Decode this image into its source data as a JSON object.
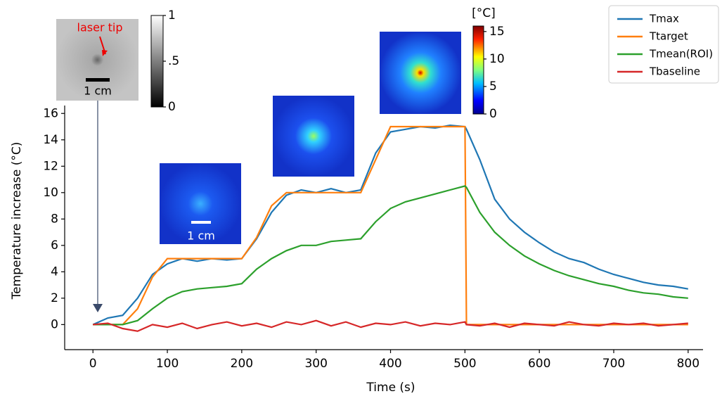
{
  "chart_data": {
    "type": "line",
    "xlabel": "Time (s)",
    "ylabel": "Temperature increase (°C)",
    "x": [
      0,
      20,
      40,
      60,
      80,
      100,
      120,
      140,
      160,
      180,
      200,
      220,
      240,
      260,
      280,
      300,
      320,
      340,
      360,
      380,
      400,
      420,
      440,
      460,
      480,
      500,
      502,
      520,
      540,
      560,
      580,
      600,
      620,
      640,
      660,
      680,
      700,
      720,
      740,
      760,
      780,
      800
    ],
    "series": [
      {
        "name": "Tmax",
        "color": "#1f77b4",
        "values": [
          0,
          0.5,
          0.7,
          2,
          3.8,
          4.6,
          5,
          4.8,
          5,
          4.9,
          5,
          6.5,
          8.5,
          9.8,
          10.2,
          10,
          10.3,
          10,
          10.2,
          13,
          14.6,
          14.8,
          15,
          14.9,
          15.1,
          15,
          14.8,
          12.5,
          9.5,
          8,
          7,
          6.2,
          5.5,
          5,
          4.7,
          4.2,
          3.8,
          3.5,
          3.2,
          3,
          2.9,
          2.7
        ]
      },
      {
        "name": "Ttarget",
        "color": "#ff7f0e",
        "values": [
          0,
          0,
          0,
          1.2,
          3.6,
          5,
          5,
          5,
          5,
          5,
          5,
          6.6,
          9,
          10,
          10,
          10,
          10,
          10,
          10,
          12.5,
          15,
          15,
          15,
          15,
          15,
          15,
          0,
          0,
          0,
          0,
          0,
          0,
          0,
          0,
          0,
          0,
          0,
          0,
          0,
          0,
          0,
          0
        ]
      },
      {
        "name": "Tmean(ROI)",
        "color": "#2ca02c",
        "values": [
          0,
          0,
          0,
          0.3,
          1.2,
          2,
          2.5,
          2.7,
          2.8,
          2.9,
          3.1,
          4.2,
          5,
          5.6,
          6,
          6,
          6.3,
          6.4,
          6.5,
          7.8,
          8.8,
          9.3,
          9.6,
          9.9,
          10.2,
          10.5,
          10.4,
          8.5,
          7,
          6,
          5.2,
          4.6,
          4.1,
          3.7,
          3.4,
          3.1,
          2.9,
          2.6,
          2.4,
          2.3,
          2.1,
          2.0
        ]
      },
      {
        "name": "Tbaseline",
        "color": "#d62728",
        "values": [
          0,
          0.1,
          -0.3,
          -0.5,
          0,
          -0.2,
          0.1,
          -0.3,
          0,
          0.2,
          -0.1,
          0.1,
          -0.2,
          0.2,
          0,
          0.3,
          -0.1,
          0.2,
          -0.2,
          0.1,
          0,
          0.2,
          -0.1,
          0.1,
          0,
          0.2,
          0,
          -0.1,
          0.1,
          -0.2,
          0.1,
          0,
          -0.1,
          0.2,
          0,
          -0.1,
          0.1,
          0,
          0.1,
          -0.1,
          0,
          0.1
        ]
      }
    ],
    "xlim": [
      -38,
      820
    ],
    "xticks": [
      0,
      100,
      200,
      300,
      400,
      500,
      600,
      700,
      800
    ],
    "ylim": [
      -1.9,
      16.6
    ],
    "yticks": [
      0,
      2,
      4,
      6,
      8,
      10,
      12,
      14,
      16
    ],
    "legend": "upper right",
    "annotations": {
      "laser_tip": "laser tip",
      "scale_bar_gray": "1 cm",
      "scale_bar_heat": "1 cm"
    },
    "gray_colorbar": {
      "lim": [
        0,
        1
      ],
      "ticks": [
        0,
        {
          "value": 0.5,
          "label": ".5"
        },
        1
      ]
    },
    "heat_colorbar": {
      "label": "[°C]",
      "lim": [
        0,
        16
      ],
      "ticks": [
        0,
        5,
        10,
        15
      ]
    }
  }
}
